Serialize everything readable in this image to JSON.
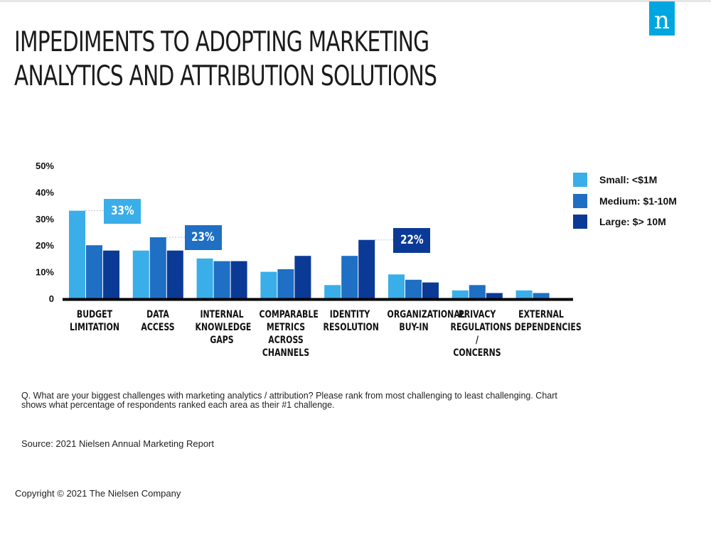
{
  "brand": {
    "logo_text": "n",
    "accent": "#00a6e0"
  },
  "title": "IMPEDIMENTS TO ADOPTING MARKETING ANALYTICS AND ATTRIBUTION SOLUTIONS",
  "chart_data": {
    "type": "bar",
    "categories": [
      "BUDGET\nLIMITATION",
      "DATA\nACCESS",
      "INTERNAL\nKNOWLEDGE\nGAPS",
      "COMPARABLE\nMETRICS\nACROSS\nCHANNELS",
      "IDENTITY\nRESOLUTION",
      "ORGANIZATIONAL\nBUY-IN",
      "PRIVACY\nREGULATIONS /\nCONCERNS",
      "EXTERNAL\nDEPENDENCIES"
    ],
    "series": [
      {
        "name": "Small: <$1M",
        "color": "#3aaee8",
        "values": [
          33,
          18,
          15,
          10,
          5,
          9,
          3,
          3
        ]
      },
      {
        "name": "Medium: $1-10M",
        "color": "#1f6fc4",
        "values": [
          20,
          23,
          14,
          11,
          16,
          7,
          5,
          2
        ]
      },
      {
        "name": "Large: $> 10M",
        "color": "#0b3a96",
        "values": [
          18,
          18,
          14,
          16,
          22,
          6,
          2,
          0
        ]
      }
    ],
    "yticks": [
      "50%",
      "40%",
      "30%",
      "20%",
      "10%",
      "0"
    ],
    "ylim": [
      0,
      50
    ],
    "grid": false,
    "legend": "right",
    "callouts": [
      {
        "text": "33%",
        "category": 0,
        "series": 0,
        "color": "#3aaee8"
      },
      {
        "text": "23%",
        "category": 1,
        "series": 1,
        "color": "#1f6fc4"
      },
      {
        "text": "22%",
        "category": 4,
        "series": 2,
        "color": "#0b3a96"
      }
    ]
  },
  "note": "Q. What are your biggest challenges with marketing analytics / attribution? Please rank from most challenging to least challenging. Chart shows what percentage of respondents ranked each area as their #1 challenge.",
  "source": "Source: 2021 Nielsen Annual Marketing Report",
  "copyright": "Copyright © 2021 The Nielsen Company"
}
